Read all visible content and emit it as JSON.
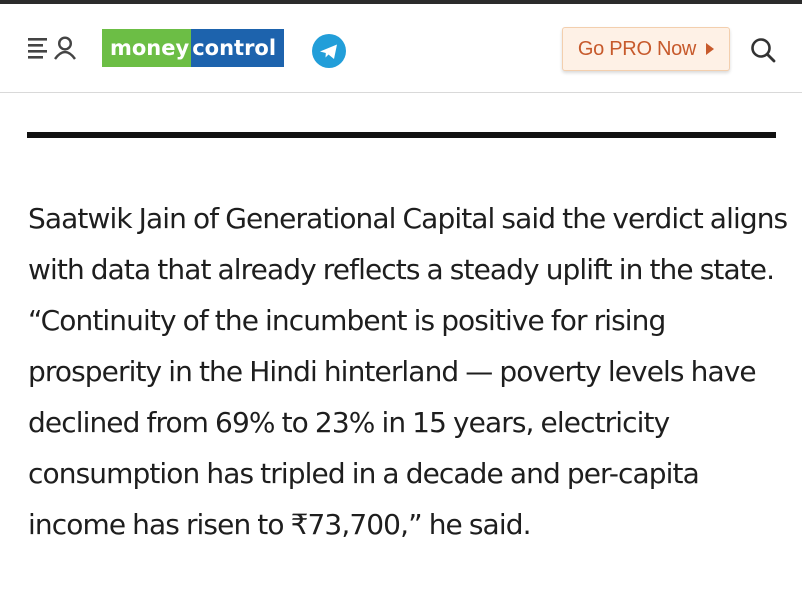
{
  "header": {
    "logo": {
      "part1": "money",
      "part2": "control"
    },
    "pro_button": {
      "label": "Go PRO Now"
    },
    "icons": {
      "menu": "menu-user-icon",
      "telegram": "telegram-icon",
      "pro_arrow": "play-triangle-icon",
      "search": "search-icon"
    }
  },
  "article": {
    "paragraph": "Saatwik Jain of Generational Capital said the verdict aligns with data that already reflects a steady uplift in the state. “Continuity of the incumbent is positive for rising prosperity in the Hindi hinterland — poverty levels have declined from 69% to 23% in 15 years, electricity consumption has tripled in a decade and per-capita income has risen to ₹73,700,” he said."
  },
  "colors": {
    "logo_green": "#6cbe45",
    "logo_blue": "#1d63ad",
    "pro_text": "#c75a2c",
    "pro_bg": "#fef1e6",
    "telegram": "#229ed9"
  }
}
